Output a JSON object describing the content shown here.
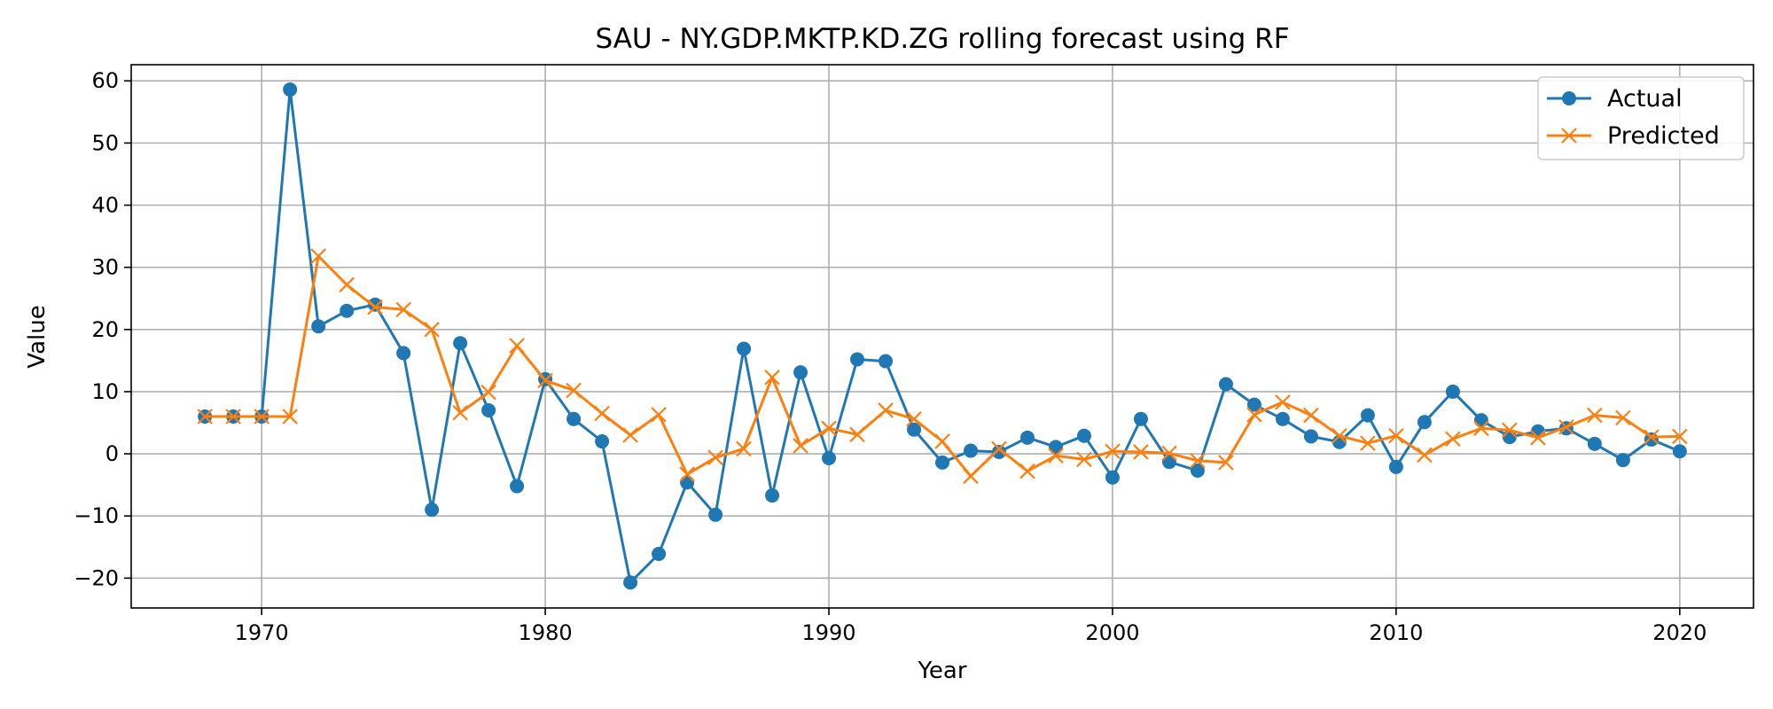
{
  "chart_data": {
    "type": "line",
    "title": "SAU - NY.GDP.MKTP.KD.ZG rolling forecast using RF",
    "xlabel": "Year",
    "ylabel": "Value",
    "xlim": [
      1965.4,
      2022.6
    ],
    "ylim": [
      -24.8,
      62.6
    ],
    "xticks": [
      1970,
      1980,
      1990,
      2000,
      2010,
      2020
    ],
    "yticks": [
      -20,
      -10,
      0,
      10,
      20,
      30,
      40,
      50,
      60
    ],
    "grid": true,
    "legend_position": "top-right",
    "x": [
      1968,
      1969,
      1970,
      1971,
      1972,
      1973,
      1974,
      1975,
      1976,
      1977,
      1978,
      1979,
      1980,
      1981,
      1982,
      1983,
      1984,
      1985,
      1986,
      1987,
      1988,
      1989,
      1990,
      1991,
      1992,
      1993,
      1994,
      1995,
      1996,
      1997,
      1998,
      1999,
      2000,
      2001,
      2002,
      2003,
      2004,
      2005,
      2006,
      2007,
      2008,
      2009,
      2010,
      2011,
      2012,
      2013,
      2014,
      2015,
      2016,
      2017,
      2018,
      2019,
      2020
    ],
    "series": [
      {
        "name": "Actual",
        "color": "#1f77b4",
        "marker": "circle",
        "values": [
          6.0,
          6.0,
          6.0,
          58.6,
          20.5,
          23.0,
          24.0,
          16.2,
          -9.0,
          17.8,
          7.0,
          -5.2,
          12.0,
          5.6,
          2.0,
          -20.7,
          -16.1,
          -4.6,
          -9.8,
          16.9,
          -6.7,
          13.1,
          -0.7,
          15.2,
          14.9,
          3.9,
          -1.4,
          0.5,
          0.3,
          2.6,
          1.1,
          2.9,
          -3.8,
          5.6,
          -1.3,
          -2.7,
          11.2,
          7.9,
          5.6,
          2.8,
          1.9,
          6.2,
          -2.1,
          5.1,
          10.0,
          5.4,
          2.7,
          3.6,
          4.1,
          1.6,
          -1.0,
          2.3,
          0.4
        ]
      },
      {
        "name": "Predicted",
        "color": "#ff7f0e",
        "marker": "x",
        "values": [
          6.0,
          6.0,
          6.0,
          6.0,
          31.8,
          27.2,
          23.6,
          23.2,
          20.0,
          6.6,
          9.9,
          17.4,
          11.8,
          10.2,
          6.5,
          3.0,
          6.3,
          -3.3,
          -0.6,
          0.8,
          12.3,
          1.3,
          4.1,
          3.1,
          7.0,
          5.6,
          2.0,
          -3.6,
          0.8,
          -2.8,
          -0.3,
          -0.9,
          0.4,
          0.3,
          0.1,
          -1.1,
          -1.4,
          6.3,
          8.3,
          6.2,
          2.9,
          1.7,
          2.9,
          -0.2,
          2.4,
          4.1,
          3.8,
          2.6,
          4.3,
          6.2,
          5.8,
          2.7,
          2.8
        ]
      }
    ]
  }
}
